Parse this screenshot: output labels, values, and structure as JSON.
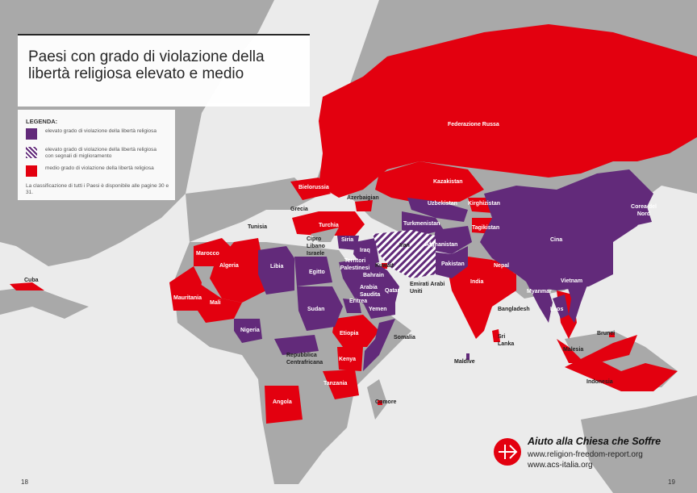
{
  "title": "Paesi con grado di violazione della libertà religiosa elevato e medio",
  "colors": {
    "ocean": "#ebebeb",
    "land": "#a9a9a9",
    "high": "#622a7a",
    "medium": "#e3000f"
  },
  "legend": {
    "heading": "LEGENDA:",
    "items": [
      {
        "label": "elevato grado di violazione della libertà religiosa",
        "style": "solid-purple"
      },
      {
        "label": "elevato grado di violazione della libertà religiosa con segnali di miglioramento",
        "style": "striped-purple"
      },
      {
        "label": "medio grado di violazione della libertà religiosa",
        "style": "solid-red"
      }
    ],
    "note": "La classificazione di tutti i Paesi è disponibile alle pagine 30 e 31."
  },
  "countries": [
    {
      "name": "Federazione Russa",
      "level": "medio"
    },
    {
      "name": "Bielorussia",
      "level": "medio"
    },
    {
      "name": "Kazakistan",
      "level": "medio"
    },
    {
      "name": "Uzbekistan",
      "level": "elevato"
    },
    {
      "name": "Kirghizistan",
      "level": "medio"
    },
    {
      "name": "Azerbaigian",
      "level": "medio"
    },
    {
      "name": "Grecia",
      "level": "none"
    },
    {
      "name": "Turchia",
      "level": "medio"
    },
    {
      "name": "Turkmenistan",
      "level": "elevato"
    },
    {
      "name": "Tagikistan",
      "level": "medio"
    },
    {
      "name": "Tunisia",
      "level": "none"
    },
    {
      "name": "Cipro",
      "level": "none"
    },
    {
      "name": "Libano",
      "level": "none"
    },
    {
      "name": "Israele",
      "level": "none"
    },
    {
      "name": "Siria",
      "level": "elevato"
    },
    {
      "name": "Iraq",
      "level": "elevato"
    },
    {
      "name": "Iran",
      "level": "elevato-miglioramento"
    },
    {
      "name": "Afghanistan",
      "level": "elevato"
    },
    {
      "name": "Corea del Nord",
      "level": "elevato"
    },
    {
      "name": "Cina",
      "level": "elevato"
    },
    {
      "name": "Marocco",
      "level": "medio"
    },
    {
      "name": "Algeria",
      "level": "medio"
    },
    {
      "name": "Libia",
      "level": "elevato"
    },
    {
      "name": "Egitto",
      "level": "elevato"
    },
    {
      "name": "Territori Palestinesi",
      "level": "elevato"
    },
    {
      "name": "Kuwait",
      "level": "medio"
    },
    {
      "name": "Bahrain",
      "level": "medio"
    },
    {
      "name": "Pakistan",
      "level": "elevato"
    },
    {
      "name": "Nepal",
      "level": "medio"
    },
    {
      "name": "Cuba",
      "level": "medio"
    },
    {
      "name": "Arabia Saudita",
      "level": "elevato"
    },
    {
      "name": "Qatar",
      "level": "elevato"
    },
    {
      "name": "Emirati Arabi Uniti",
      "level": "none"
    },
    {
      "name": "India",
      "level": "medio"
    },
    {
      "name": "Myanmar",
      "level": "elevato"
    },
    {
      "name": "Vietnam",
      "level": "elevato"
    },
    {
      "name": "Mauritania",
      "level": "medio"
    },
    {
      "name": "Mali",
      "level": "medio"
    },
    {
      "name": "Sudan",
      "level": "elevato"
    },
    {
      "name": "Eritrea",
      "level": "elevato"
    },
    {
      "name": "Yemen",
      "level": "elevato"
    },
    {
      "name": "Bangladesh",
      "level": "none"
    },
    {
      "name": "Laos",
      "level": "elevato"
    },
    {
      "name": "Nigeria",
      "level": "elevato"
    },
    {
      "name": "Etiopia",
      "level": "medio"
    },
    {
      "name": "Somalia",
      "level": "elevato"
    },
    {
      "name": "Sri Lanka",
      "level": "medio"
    },
    {
      "name": "Brunei",
      "level": "medio"
    },
    {
      "name": "Malesia",
      "level": "medio"
    },
    {
      "name": "Repubblica Centrafricana",
      "level": "elevato"
    },
    {
      "name": "Kenya",
      "level": "medio"
    },
    {
      "name": "Maldive",
      "level": "elevato"
    },
    {
      "name": "Indonesia",
      "level": "medio"
    },
    {
      "name": "Tanzania",
      "level": "medio"
    },
    {
      "name": "Angola",
      "level": "medio"
    },
    {
      "name": "Comore",
      "level": "medio"
    }
  ],
  "brand": {
    "name": "Aiuto alla Chiesa che Soffre",
    "url1": "www.religion-freedom-report.org",
    "url2": "www.acs-italia.org"
  },
  "pages": {
    "left": "18",
    "right": "19"
  }
}
